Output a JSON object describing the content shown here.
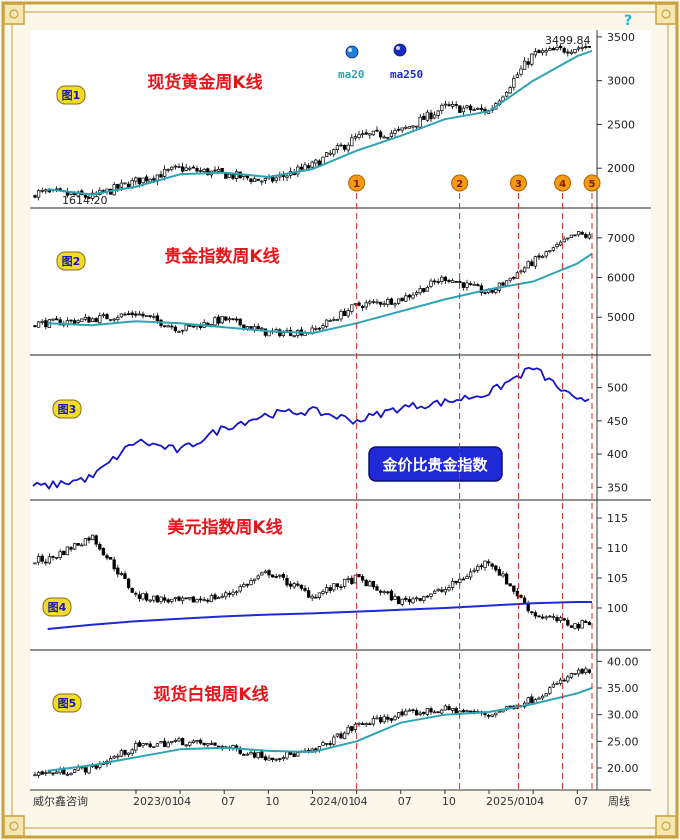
{
  "colors": {
    "frame_gold": "#c9a23f",
    "panel_bg": "#ffffff",
    "candle": "#000000",
    "ma_teal": "#2ea3b3",
    "ma_blue": "#1f2ad6",
    "ratio_blue": "#1515c8",
    "red": "#e8141b",
    "badge_fill": "#f2dc2a",
    "badge_text": "#1a1ab0",
    "marker_fill": "#f39b12",
    "grid_red": "#d82626"
  },
  "header": {
    "help_icon": "help-icon",
    "legend": [
      {
        "label": "ma20",
        "icon": "ball-icon",
        "color": "#1e7fd8"
      },
      {
        "label": "ma250",
        "icon": "ball-icon",
        "color": "#1b2ac0"
      }
    ]
  },
  "chart_data": [
    {
      "type": "candlestick",
      "badge": "图1",
      "title": "现货黄金周K线",
      "ylim": [
        1614,
        3510
      ],
      "yticks": [
        2000,
        2500,
        3000,
        3500
      ],
      "ytick_labels": [
        "2000",
        "2500",
        "3000",
        "3500"
      ],
      "annotation_high": "3499.84",
      "annotation_low": "1614.20",
      "markers": [
        "1",
        "2",
        "3",
        "4",
        "5"
      ],
      "x": [
        "2022-07",
        "2022-10",
        "2023-01",
        "2023-04",
        "2023-07",
        "2023-10",
        "2024-01",
        "2024-04",
        "2024-07",
        "2024-10",
        "2025-01",
        "2025-04",
        "2025-07",
        "2025-08"
      ],
      "close": [
        1720,
        1670,
        1850,
        2000,
        1930,
        1850,
        2030,
        2350,
        2420,
        2700,
        2650,
        3300,
        3380,
        3400
      ],
      "series": [
        {
          "name": "ma20",
          "values": [
            1760,
            1700,
            1790,
            1930,
            1950,
            1900,
            1990,
            2200,
            2370,
            2560,
            2650,
            3000,
            3280,
            3340
          ]
        }
      ]
    },
    {
      "type": "candlestick",
      "badge": "图2",
      "title": "贵金指数周K线",
      "ylim": [
        4200,
        7600
      ],
      "yticks": [
        5000,
        6000,
        7000
      ],
      "ytick_labels": [
        "5000",
        "6000",
        "7000"
      ],
      "x": [
        "2022-07",
        "2022-10",
        "2023-01",
        "2023-04",
        "2023-07",
        "2023-10",
        "2024-01",
        "2024-04",
        "2024-07",
        "2024-10",
        "2025-01",
        "2025-04",
        "2025-07",
        "2025-08"
      ],
      "close": [
        4850,
        4950,
        5100,
        4700,
        4950,
        4600,
        4650,
        5300,
        5450,
        6000,
        5600,
        6400,
        7100,
        7000
      ],
      "series": [
        {
          "name": "ma20",
          "values": [
            4850,
            4800,
            4900,
            4850,
            4750,
            4650,
            4600,
            4850,
            5150,
            5450,
            5700,
            5900,
            6350,
            6600
          ]
        }
      ]
    },
    {
      "type": "line",
      "badge": "图3",
      "title": "金价比贵金指数",
      "ylim": [
        340,
        540
      ],
      "yticks": [
        350,
        400,
        450,
        500
      ],
      "ytick_labels": [
        "350",
        "400",
        "450",
        "500"
      ],
      "x": [
        "2022-07",
        "2022-10",
        "2023-01",
        "2023-04",
        "2023-07",
        "2023-10",
        "2024-01",
        "2024-04",
        "2024-07",
        "2024-10",
        "2025-01",
        "2025-04",
        "2025-07",
        "2025-08"
      ],
      "series": [
        {
          "name": "",
          "values": [
            352,
            365,
            420,
            405,
            440,
            460,
            465,
            450,
            470,
            478,
            492,
            530,
            478,
            485
          ]
        }
      ]
    },
    {
      "type": "candlestick",
      "badge": "图4",
      "title": "美元指数周K线",
      "ylim": [
        94,
        117
      ],
      "yticks": [
        100,
        105,
        110,
        115
      ],
      "ytick_labels": [
        "100",
        "105",
        "110",
        "115"
      ],
      "x": [
        "2022-07",
        "2022-10",
        "2023-01",
        "2023-04",
        "2023-07",
        "2023-10",
        "2024-01",
        "2024-04",
        "2024-07",
        "2024-10",
        "2025-01",
        "2025-04",
        "2025-07",
        "2025-08"
      ],
      "close": [
        108,
        112,
        102,
        101,
        102,
        106,
        102,
        105,
        101,
        103,
        108,
        99,
        97,
        98
      ],
      "series": [
        {
          "name": "ma250",
          "values": [
            96.5,
            97.2,
            97.8,
            98.2,
            98.6,
            98.9,
            99.1,
            99.4,
            99.7,
            100.0,
            100.4,
            100.8,
            101.0,
            101.0
          ]
        }
      ]
    },
    {
      "type": "candlestick",
      "badge": "图5",
      "title": "现货白银周K线",
      "ylim": [
        17,
        41
      ],
      "yticks": [
        20,
        25,
        30,
        35,
        40
      ],
      "ytick_labels": [
        "20.00",
        "25.00",
        "30.00",
        "35.00",
        "40.00"
      ],
      "x": [
        "2022-07",
        "2022-10",
        "2023-01",
        "2023-04",
        "2023-07",
        "2023-10",
        "2024-01",
        "2024-04",
        "2024-07",
        "2024-10",
        "2025-01",
        "2025-04",
        "2025-07",
        "2025-08"
      ],
      "close": [
        19,
        20,
        24,
        25,
        24,
        22,
        23,
        28,
        30,
        31,
        30,
        33,
        38,
        38
      ],
      "series": [
        {
          "name": "ma20",
          "values": [
            19.5,
            20.5,
            22,
            23.5,
            23.8,
            23.2,
            23,
            25,
            28.5,
            30,
            30.5,
            32,
            34,
            35
          ]
        }
      ]
    }
  ],
  "x_axis": {
    "source": "威尔鑫咨询",
    "labels": [
      {
        "text": "2023/01",
        "x": "2023-01"
      },
      {
        "text": "04",
        "x": "2023-04"
      },
      {
        "text": "07",
        "x": "2023-07"
      },
      {
        "text": "10",
        "x": "2023-10"
      },
      {
        "text": "2024/01",
        "x": "2024-01"
      },
      {
        "text": "04",
        "x": "2024-04"
      },
      {
        "text": "07",
        "x": "2024-07"
      },
      {
        "text": "10",
        "x": "2024-10"
      },
      {
        "text": "2025/01",
        "x": "2025-01"
      },
      {
        "text": "04",
        "x": "2025-04"
      },
      {
        "text": "07",
        "x": "2025-07"
      }
    ],
    "period": "周线"
  },
  "vertical_markers": [
    {
      "label": "1",
      "x": "2024-04"
    },
    {
      "label": "2",
      "x": "2024-11"
    },
    {
      "label": "3",
      "x": "2025-03"
    },
    {
      "label": "4",
      "x": "2025-06"
    },
    {
      "label": "5",
      "x": "2025-08"
    }
  ]
}
